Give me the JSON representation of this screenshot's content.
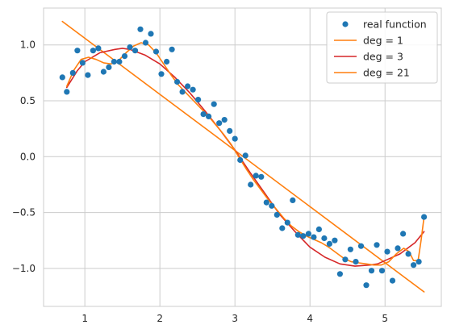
{
  "chart_data": {
    "type": "scatter",
    "title": "",
    "xlabel": "",
    "ylabel": "",
    "xlim": [
      0.45,
      5.75
    ],
    "ylim": [
      -1.34,
      1.33
    ],
    "xticks": [
      1,
      2,
      3,
      4,
      5
    ],
    "xtick_labels": [
      "1",
      "2",
      "3",
      "4",
      "5"
    ],
    "yticks": [
      -1.0,
      -0.5,
      0.0,
      0.5,
      1.0
    ],
    "ytick_labels": [
      "−1.0",
      "−0.5",
      "0.0",
      "0.5",
      "1.0"
    ],
    "grid": true,
    "legend_position": "top-right",
    "colors": {
      "scatter": "#1f77b4",
      "deg1": "#ff7f0e",
      "deg3": "#d62728",
      "deg21": "#ff7f0e",
      "grid": "#cccccc",
      "frame": "#cccccc"
    },
    "legend": [
      "real function",
      "deg = 1",
      "deg = 3",
      "deg = 21"
    ],
    "scatter": {
      "name": "real function",
      "x": [
        0.7,
        0.76,
        0.84,
        0.9,
        0.97,
        1.04,
        1.11,
        1.18,
        1.25,
        1.32,
        1.39,
        1.46,
        1.53,
        1.6,
        1.67,
        1.74,
        1.81,
        1.88,
        1.95,
        2.02,
        2.09,
        2.16,
        2.23,
        2.3,
        2.37,
        2.44,
        2.51,
        2.58,
        2.65,
        2.72,
        2.79,
        2.86,
        2.93,
        3.0,
        3.07,
        3.14,
        3.21,
        3.28,
        3.35,
        3.42,
        3.49,
        3.56,
        3.63,
        3.7,
        3.77,
        3.84,
        3.91,
        3.98,
        4.05,
        4.12,
        4.19,
        4.26,
        4.33,
        4.4,
        4.47,
        4.54,
        4.61,
        4.68,
        4.75,
        4.82,
        4.89,
        4.96,
        5.03,
        5.1,
        5.17,
        5.24,
        5.31,
        5.38,
        5.45,
        5.52
      ],
      "y": [
        0.71,
        0.58,
        0.75,
        0.95,
        0.84,
        0.73,
        0.95,
        0.97,
        0.76,
        0.8,
        0.85,
        0.85,
        0.9,
        0.98,
        0.95,
        1.14,
        1.02,
        1.1,
        0.94,
        0.74,
        0.85,
        0.96,
        0.67,
        0.58,
        0.63,
        0.6,
        0.51,
        0.38,
        0.36,
        0.47,
        0.3,
        0.33,
        0.23,
        0.16,
        -0.03,
        0.01,
        -0.25,
        -0.17,
        -0.18,
        -0.41,
        -0.44,
        -0.52,
        -0.64,
        -0.59,
        -0.39,
        -0.7,
        -0.71,
        -0.69,
        -0.72,
        -0.65,
        -0.73,
        -0.78,
        -0.75,
        -1.05,
        -0.92,
        -0.83,
        -0.94,
        -0.8,
        -1.15,
        -1.02,
        -0.79,
        -1.02,
        -0.85,
        -1.11,
        -0.82,
        -0.69,
        -0.87,
        -0.97,
        -0.94,
        -0.54
      ]
    },
    "lines": [
      {
        "name": "deg = 1",
        "color": "#ff7f0e",
        "x": [
          0.7,
          5.52
        ],
        "y": [
          1.21,
          -1.21
        ]
      },
      {
        "name": "deg = 3",
        "color": "#d62728",
        "x": [
          0.76,
          0.9,
          1.0,
          1.2,
          1.4,
          1.5,
          1.6,
          1.8,
          2.0,
          2.2,
          2.4,
          2.6,
          2.8,
          3.0,
          3.2,
          3.4,
          3.6,
          3.8,
          4.0,
          4.2,
          4.4,
          4.6,
          4.8,
          4.9,
          5.0,
          5.2,
          5.4,
          5.52
        ],
        "y": [
          0.62,
          0.77,
          0.85,
          0.93,
          0.96,
          0.97,
          0.96,
          0.91,
          0.83,
          0.71,
          0.57,
          0.41,
          0.24,
          0.06,
          -0.14,
          -0.33,
          -0.52,
          -0.67,
          -0.81,
          -0.9,
          -0.96,
          -0.98,
          -0.97,
          -0.96,
          -0.93,
          -0.87,
          -0.77,
          -0.67
        ]
      },
      {
        "name": "deg = 21",
        "color": "#ff7f0e",
        "x": [
          0.76,
          0.85,
          0.95,
          1.05,
          1.15,
          1.25,
          1.35,
          1.45,
          1.55,
          1.65,
          1.75,
          1.85,
          1.95,
          2.05,
          2.15,
          2.25,
          2.35,
          2.45,
          2.55,
          2.65,
          2.75,
          2.85,
          2.95,
          3.05,
          3.15,
          3.25,
          3.35,
          3.45,
          3.55,
          3.65,
          3.75,
          3.85,
          3.95,
          4.05,
          4.15,
          4.25,
          4.35,
          4.45,
          4.55,
          4.65,
          4.75,
          4.85,
          4.95,
          5.05,
          5.15,
          5.25,
          5.32,
          5.38,
          5.44,
          5.48,
          5.52
        ],
        "y": [
          0.63,
          0.77,
          0.87,
          0.89,
          0.87,
          0.84,
          0.83,
          0.86,
          0.93,
          0.99,
          1.02,
          1.0,
          0.93,
          0.83,
          0.73,
          0.64,
          0.57,
          0.5,
          0.43,
          0.36,
          0.28,
          0.2,
          0.11,
          0.0,
          -0.11,
          -0.21,
          -0.3,
          -0.39,
          -0.47,
          -0.55,
          -0.62,
          -0.67,
          -0.71,
          -0.74,
          -0.77,
          -0.81,
          -0.86,
          -0.91,
          -0.94,
          -0.95,
          -0.96,
          -0.97,
          -0.97,
          -0.94,
          -0.87,
          -0.82,
          -0.85,
          -0.93,
          -0.93,
          -0.75,
          -0.54
        ]
      }
    ]
  }
}
